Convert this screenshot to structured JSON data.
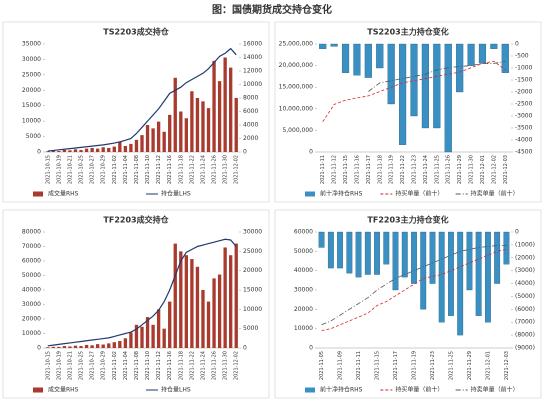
{
  "title": "图：国债期货成交持仓变化",
  "chart_data": [
    {
      "type": "combo",
      "title": "TS2203成交持仓",
      "categories": [
        "2021-10-15",
        null,
        "2021-10-19",
        null,
        "2021-10-21",
        null,
        "2021-10-25",
        null,
        "2021-10-27",
        null,
        "2021-10-29",
        null,
        "2021-11-02",
        null,
        "2021-11-04",
        null,
        "2021-11-08",
        null,
        "2021-11-10",
        null,
        "2021-11-12",
        null,
        "2021-11-16",
        null,
        "2021-11-18",
        null,
        "2021-11-22",
        null,
        "2021-11-24",
        null,
        "2021-11-26",
        null,
        "2021-11-30",
        null,
        "2021-12-02"
      ],
      "series": [
        {
          "name": "成交量RHS",
          "type": "bar",
          "axis": "y2",
          "color": "#a83a2e",
          "values": [
            100,
            200,
            150,
            300,
            250,
            400,
            300,
            500,
            600,
            500,
            700,
            600,
            800,
            1500,
            900,
            1200,
            1800,
            2500,
            4000,
            3500,
            4500,
            3000,
            5500,
            11000,
            6000,
            5000,
            9000,
            8000,
            7500,
            6500,
            13500,
            10500,
            14000,
            12500,
            8000
          ]
        },
        {
          "name": "持仓量LHS",
          "type": "line",
          "axis": "y",
          "color": "#1f3a6e",
          "style": "solid",
          "values": [
            300,
            500,
            700,
            900,
            1100,
            1300,
            1500,
            1700,
            1900,
            2100,
            2300,
            2600,
            2900,
            3300,
            3800,
            4400,
            6000,
            8000,
            10000,
            12000,
            14000,
            16500,
            19000,
            20000,
            21000,
            22500,
            23500,
            24500,
            25500,
            27000,
            29000,
            31000,
            32000,
            33500,
            31500
          ]
        }
      ],
      "ylim": [
        0,
        35000
      ],
      "yticks": [
        0,
        5000,
        10000,
        15000,
        20000,
        25000,
        30000,
        35000
      ],
      "y2lim": [
        0,
        16000
      ],
      "y2ticks": [
        0,
        2000,
        4000,
        6000,
        8000,
        10000,
        12000,
        14000,
        16000
      ]
    },
    {
      "type": "combo",
      "title": "TS2203主力持仓变化",
      "categories": [
        "2021-11-11",
        "2021-11-12",
        "2021-11-15",
        "2021-11-16",
        "2021-11-17",
        "2021-11-18",
        "2021-11-19",
        "2021-11-22",
        "2021-11-23",
        "2021-11-24",
        "2021-11-25",
        "2021-11-26",
        "2021-11-29",
        "2021-11-30",
        "2021-12-01",
        "2021-12-02",
        "2021-12-03"
      ],
      "series": [
        {
          "name": "前十净持仓RHS",
          "type": "bar",
          "axis": "y2",
          "color": "#3a90c2",
          "values": [
            -200,
            -100,
            -1200,
            -1300,
            -1400,
            -1000,
            -2500,
            -4200,
            -3000,
            -3500,
            -3500,
            -4500,
            -2000,
            -900,
            -800,
            -200,
            -1200
          ]
        },
        {
          "name": "持买单量（前十）",
          "type": "line",
          "axis": "y",
          "color": "#d62728",
          "style": "dashed",
          "values": [
            7000000,
            11000000,
            12000000,
            12500000,
            13000000,
            14000000,
            15000000,
            16000000,
            16500000,
            17000000,
            17500000,
            18000000,
            18500000,
            19500000,
            20500000,
            21000000,
            19000000
          ]
        },
        {
          "name": "持卖单量（前十）",
          "type": "line",
          "axis": "y",
          "color": "#555555",
          "style": "dashdot",
          "values": [
            null,
            null,
            null,
            null,
            14000000,
            16000000,
            16500000,
            17000000,
            17500000,
            18000000,
            19000000,
            19500000,
            19800000,
            20000000,
            20500000,
            20500000,
            21000000
          ]
        }
      ],
      "ylim": [
        0,
        25000000
      ],
      "yticks": [
        0,
        {
          "value": 5000000,
          "label": "5,000,000"
        },
        {
          "value": 10000000,
          "label": "10,000,000"
        },
        {
          "value": 15000000,
          "label": "15,000,000"
        },
        {
          "value": 20000000,
          "label": "20,000,000"
        },
        {
          "value": 25000000,
          "label": "25,000,000"
        }
      ],
      "y2lim": [
        -4500,
        0
      ],
      "y2ticks": [
        0,
        -500,
        -1000,
        -1500,
        -2000,
        -2500,
        -3000,
        -3500,
        -4000,
        -4500
      ]
    },
    {
      "type": "combo",
      "title": "TF2203成交持仓",
      "categories": [
        "2021-10-15",
        null,
        "2021-10-19",
        null,
        "2021-10-21",
        null,
        "2021-10-25",
        null,
        "2021-10-27",
        null,
        "2021-10-29",
        null,
        "2021-11-02",
        null,
        "2021-11-04",
        null,
        "2021-11-08",
        null,
        "2021-11-10",
        null,
        "2021-11-12",
        null,
        "2021-11-16",
        null,
        "2021-11-18",
        null,
        "2021-11-22",
        null,
        "2021-11-24",
        null,
        "2021-11-26",
        null,
        "2021-11-30",
        null,
        "2021-12-02"
      ],
      "series": [
        {
          "name": "成交量RHS",
          "type": "bar",
          "axis": "y2",
          "color": "#a83a2e",
          "values": [
            200,
            300,
            300,
            500,
            400,
            600,
            500,
            800,
            700,
            1000,
            900,
            1200,
            1500,
            1800,
            2500,
            4000,
            6000,
            5500,
            8000,
            6000,
            10000,
            5000,
            12000,
            27000,
            25000,
            24000,
            23000,
            21000,
            15000,
            12000,
            18000,
            19000,
            26000,
            24000,
            27000
          ]
        },
        {
          "name": "持仓量LHS",
          "type": "line",
          "axis": "y",
          "color": "#1f3a6e",
          "style": "solid",
          "values": [
            1500,
            2000,
            2500,
            3000,
            3500,
            4000,
            4500,
            5000,
            5500,
            6000,
            6500,
            7000,
            8000,
            9000,
            10000,
            11000,
            13000,
            16000,
            19000,
            22000,
            26000,
            32000,
            40000,
            50000,
            60000,
            66000,
            68000,
            70000,
            71000,
            72000,
            73000,
            74000,
            75000,
            74500,
            70000
          ]
        }
      ],
      "ylim": [
        0,
        80000
      ],
      "yticks": [
        0,
        10000,
        20000,
        30000,
        40000,
        50000,
        60000,
        70000,
        80000
      ],
      "y2lim": [
        0,
        30000
      ],
      "y2ticks": [
        0,
        5000,
        10000,
        15000,
        20000,
        25000,
        30000
      ]
    },
    {
      "type": "combo",
      "title": "TF2203主力持仓变化",
      "categories": [
        "2021-11-05",
        null,
        "2021-11-09",
        null,
        "2021-11-11",
        null,
        "2021-11-15",
        null,
        "2021-11-17",
        null,
        "2021-11-19",
        null,
        "2021-11-23",
        null,
        "2021-11-25",
        null,
        "2021-11-29",
        null,
        "2021-12-01",
        null,
        "2021-12-03"
      ],
      "series": [
        {
          "name": "前十净持仓RHS",
          "type": "bar",
          "axis": "y2",
          "color": "#3a90c2",
          "values": [
            -1200,
            -2800,
            -2800,
            -3200,
            -3500,
            -3300,
            -3300,
            -2500,
            -4500,
            -3500,
            -4000,
            -6000,
            -4000,
            -7000,
            -6500,
            -8000,
            -4500,
            -6500,
            -7000,
            -4000,
            -2500
          ]
        },
        {
          "name": "持买单量（前十）",
          "type": "line",
          "axis": "y",
          "color": "#d62728",
          "style": "dashed",
          "values": [
            9000,
            10000,
            12000,
            14000,
            16000,
            18000,
            22000,
            24000,
            27000,
            30000,
            33000,
            36000,
            37000,
            38000,
            40000,
            42000,
            44000,
            46000,
            48000,
            50000,
            51000
          ]
        },
        {
          "name": "持卖单量（前十）",
          "type": "line",
          "axis": "y",
          "color": "#555555",
          "style": "dashdot",
          "values": [
            12000,
            14000,
            17000,
            20000,
            23000,
            26000,
            30000,
            33000,
            36000,
            38000,
            40000,
            42000,
            44000,
            46000,
            48000,
            50000,
            51000,
            52000,
            52500,
            53000,
            53000
          ]
        }
      ],
      "ylim": [
        0,
        60000
      ],
      "yticks": [
        0,
        10000,
        20000,
        30000,
        40000,
        50000,
        60000
      ],
      "y2lim": [
        -9000,
        0
      ],
      "y2ticks": [
        0,
        {
          "value": -1000,
          "label": "(1000)"
        },
        {
          "value": -2000,
          "label": "(2000)"
        },
        {
          "value": -3000,
          "label": "(3000)"
        },
        {
          "value": -4000,
          "label": "(4000)"
        },
        {
          "value": -5000,
          "label": "(5000)"
        },
        {
          "value": -6000,
          "label": "(6000)"
        },
        {
          "value": -7000,
          "label": "(7000)"
        },
        {
          "value": -8000,
          "label": "(8000)"
        },
        {
          "value": -9000,
          "label": "(9000)"
        }
      ]
    }
  ]
}
